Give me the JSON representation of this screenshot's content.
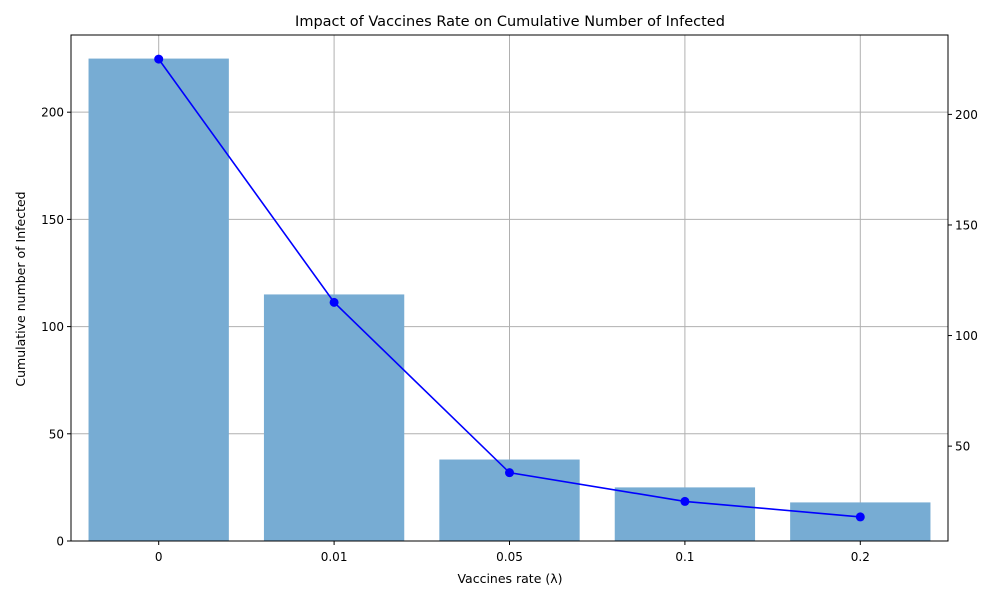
{
  "chart_data": {
    "type": "bar",
    "title": "Impact of Vaccines Rate on Cumulative Number of Infected",
    "xlabel": "Vaccines rate (λ)",
    "ylabel": "Cumulative number of Infected",
    "categories": [
      "0",
      "0.01",
      "0.05",
      "0.1",
      "0.2"
    ],
    "series": [
      {
        "kind": "bar",
        "axis": "left",
        "values": [
          225,
          115,
          38,
          25,
          18
        ],
        "color": "#77acd3"
      },
      {
        "kind": "line",
        "axis": "right",
        "values": [
          225,
          115,
          38,
          25,
          18
        ],
        "color": "#0000ff"
      }
    ],
    "ylim_left": [
      0,
      236
    ],
    "yticks_left": [
      0,
      50,
      100,
      150,
      200
    ],
    "ylim_right": [
      7.1,
      235.9
    ],
    "yticks_right": [
      50,
      100,
      150,
      200
    ],
    "grid": true
  }
}
